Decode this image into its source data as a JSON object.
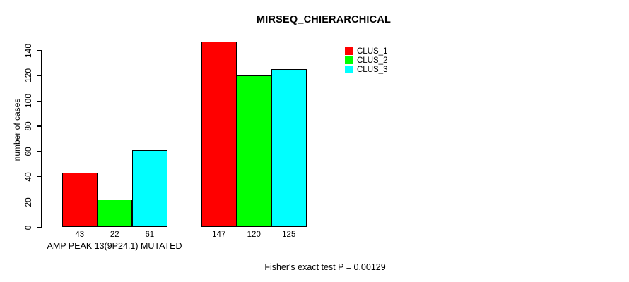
{
  "chart_data": {
    "type": "bar",
    "title": "MIRSEQ_CHIERARCHICAL",
    "ylabel": "number of cases",
    "xlabel": "AMP PEAK 13(9P24.1) MUTATED",
    "ylim": [
      0,
      140
    ],
    "yticks": [
      0,
      20,
      40,
      60,
      80,
      100,
      120,
      140
    ],
    "grid": false,
    "legend_position": "top-right",
    "categories": [
      "AMP PEAK 13(9P24.1) MUTATED",
      ""
    ],
    "series": [
      {
        "name": "CLUS_1",
        "color": "#ff0000",
        "values": [
          43,
          147
        ]
      },
      {
        "name": "CLUS_2",
        "color": "#00ff00",
        "values": [
          22,
          120
        ]
      },
      {
        "name": "CLUS_3",
        "color": "#00ffff",
        "values": [
          61,
          125
        ]
      }
    ],
    "bar_value_labels": [
      [
        43,
        22,
        61
      ],
      [
        147,
        120,
        125
      ]
    ],
    "footnote": "Fisher's exact test P = 0.00129"
  }
}
